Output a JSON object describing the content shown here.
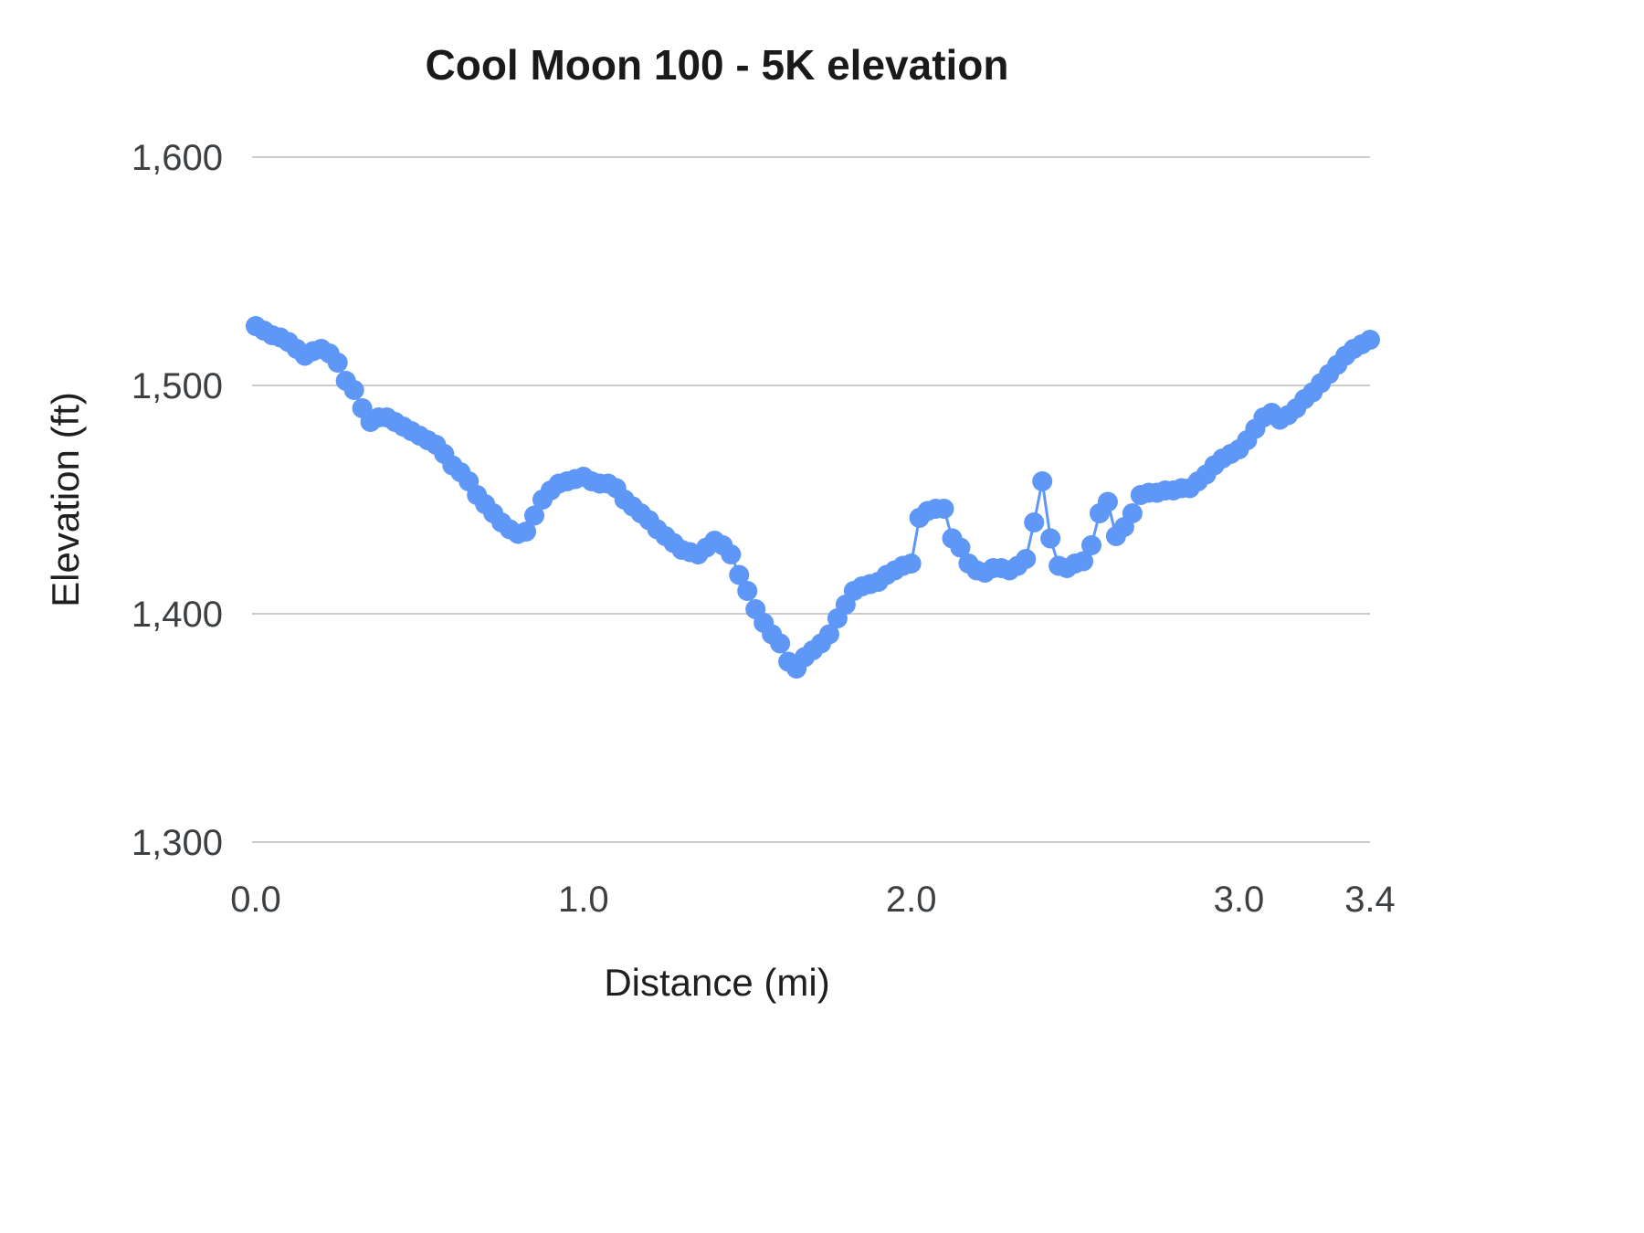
{
  "chart_data": {
    "type": "scatter",
    "title": "Cool Moon 100 - 5K elevation",
    "xlabel": "Distance (mi)",
    "ylabel": "Elevation (ft)",
    "xlim": [
      0,
      3.4
    ],
    "ylim": [
      1300,
      1600
    ],
    "grid": "horizontal-only",
    "legend": "none",
    "xticks": [
      {
        "v": 0.0,
        "label": "0.0"
      },
      {
        "v": 1.0,
        "label": "1.0"
      },
      {
        "v": 2.0,
        "label": "2.0"
      },
      {
        "v": 3.0,
        "label": "3.0"
      },
      {
        "v": 3.4,
        "label": "3.4"
      }
    ],
    "yticks": [
      {
        "v": 1300,
        "label": "1,300"
      },
      {
        "v": 1400,
        "label": "1,400"
      },
      {
        "v": 1500,
        "label": "1,500"
      },
      {
        "v": 1600,
        "label": "1,600"
      }
    ],
    "colors": {
      "series": "#5e97f6",
      "grid": "#cccccc",
      "tick": "#3c4043"
    },
    "x": [
      0.0,
      0.025,
      0.05,
      0.075,
      0.1,
      0.125,
      0.15,
      0.175,
      0.2,
      0.225,
      0.25,
      0.275,
      0.3,
      0.325,
      0.35,
      0.375,
      0.4,
      0.425,
      0.45,
      0.475,
      0.5,
      0.525,
      0.55,
      0.575,
      0.6,
      0.625,
      0.65,
      0.675,
      0.7,
      0.725,
      0.75,
      0.775,
      0.8,
      0.825,
      0.85,
      0.875,
      0.9,
      0.925,
      0.95,
      0.975,
      1.0,
      1.025,
      1.05,
      1.075,
      1.1,
      1.125,
      1.15,
      1.175,
      1.2,
      1.225,
      1.25,
      1.275,
      1.3,
      1.325,
      1.35,
      1.375,
      1.4,
      1.425,
      1.45,
      1.475,
      1.5,
      1.525,
      1.55,
      1.575,
      1.6,
      1.625,
      1.65,
      1.675,
      1.7,
      1.725,
      1.75,
      1.775,
      1.8,
      1.825,
      1.85,
      1.875,
      1.9,
      1.925,
      1.95,
      1.975,
      2.0,
      2.025,
      2.05,
      2.075,
      2.1,
      2.125,
      2.15,
      2.175,
      2.2,
      2.225,
      2.25,
      2.275,
      2.3,
      2.325,
      2.35,
      2.375,
      2.4,
      2.425,
      2.45,
      2.475,
      2.5,
      2.525,
      2.55,
      2.575,
      2.6,
      2.625,
      2.65,
      2.675,
      2.7,
      2.725,
      2.75,
      2.775,
      2.8,
      2.825,
      2.85,
      2.875,
      2.9,
      2.925,
      2.95,
      2.975,
      3.0,
      3.025,
      3.05,
      3.075,
      3.1,
      3.125,
      3.15,
      3.175,
      3.2,
      3.225,
      3.25,
      3.275,
      3.3,
      3.325,
      3.35,
      3.375,
      3.4
    ],
    "y": [
      1526,
      1524,
      1522,
      1521,
      1519,
      1516,
      1513,
      1515,
      1516,
      1514,
      1510,
      1502,
      1498,
      1490,
      1484,
      1486,
      1486,
      1484,
      1482,
      1480,
      1478,
      1476,
      1474,
      1470,
      1465,
      1462,
      1458,
      1452,
      1448,
      1444,
      1440,
      1437,
      1435,
      1436,
      1443,
      1450,
      1454,
      1457,
      1458,
      1459,
      1460,
      1458,
      1457,
      1457,
      1455,
      1450,
      1447,
      1444,
      1441,
      1437,
      1434,
      1431,
      1428,
      1427,
      1426,
      1429,
      1432,
      1430,
      1426,
      1417,
      1410,
      1402,
      1396,
      1391,
      1387,
      1379,
      1376,
      1381,
      1384,
      1387,
      1391,
      1398,
      1404,
      1410,
      1412,
      1413,
      1414,
      1417,
      1419,
      1421,
      1422,
      1442,
      1445,
      1446,
      1446,
      1433,
      1429,
      1422,
      1419,
      1418,
      1420,
      1420,
      1419,
      1421,
      1424,
      1440,
      1458,
      1433,
      1421,
      1420,
      1422,
      1423,
      1430,
      1444,
      1449,
      1434,
      1438,
      1444,
      1452,
      1453,
      1453,
      1454,
      1454,
      1455,
      1455,
      1458,
      1461,
      1465,
      1468,
      1470,
      1472,
      1476,
      1481,
      1486,
      1488,
      1485,
      1487,
      1490,
      1494,
      1497,
      1501,
      1505,
      1509,
      1513,
      1516,
      1518,
      1520
    ]
  }
}
